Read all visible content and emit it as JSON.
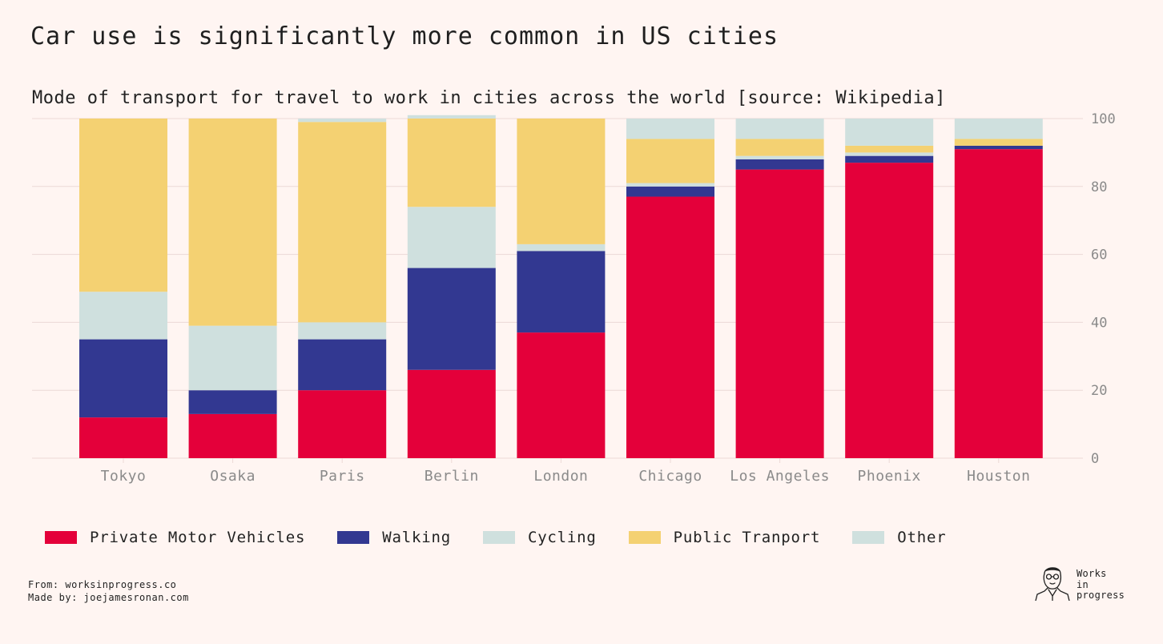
{
  "header": {
    "title": "Car use is significantly more common in US cities",
    "subtitle": "Mode of transport for travel to work in cities across the world [source: Wikipedia]"
  },
  "colors": {
    "background": "#fff5f2",
    "private_motor_vehicles": "#e4003a",
    "walking": "#323891",
    "cycling": "#cfe0de",
    "public_transport": "#f4d172",
    "other": "#cfe0de",
    "grid": "#ecd9d6",
    "axis_text": "#8a8a8a"
  },
  "chart_data": {
    "type": "bar",
    "stacked": true,
    "title": "Mode of transport for travel to work in cities across the world [source: Wikipedia]",
    "xlabel": "",
    "ylabel": "",
    "ylim": [
      0,
      100
    ],
    "yticks": [
      "0",
      "20",
      "40",
      "60",
      "80",
      "100"
    ],
    "y_axis_side": "right",
    "grid": true,
    "legend_position": "bottom",
    "categories": [
      "Tokyo",
      "Osaka",
      "Paris",
      "Berlin",
      "London",
      "Chicago",
      "Los Angeles",
      "Phoenix",
      "Houston"
    ],
    "series": [
      {
        "name": "Private Motor Vehicles",
        "values": [
          12,
          13,
          20,
          26,
          37,
          77,
          85,
          87,
          91
        ]
      },
      {
        "name": "Walking",
        "values": [
          23,
          7,
          15,
          30,
          24,
          3,
          3,
          2,
          1
        ]
      },
      {
        "name": "Cycling",
        "values": [
          14,
          19,
          5,
          18,
          2,
          1,
          1,
          1,
          0
        ]
      },
      {
        "name": "Public Tranport",
        "values": [
          51,
          61,
          59,
          26,
          37,
          13,
          5,
          2,
          2
        ]
      },
      {
        "name": "Other",
        "values": [
          0,
          0,
          1,
          1,
          0,
          6,
          6,
          8,
          6
        ]
      }
    ]
  },
  "footer": {
    "from": "From: worksinprogress.co",
    "made_by": "Made by: joejamesronan.com"
  },
  "logo": {
    "line1": "Works",
    "line2": "in",
    "line3": "progress"
  }
}
